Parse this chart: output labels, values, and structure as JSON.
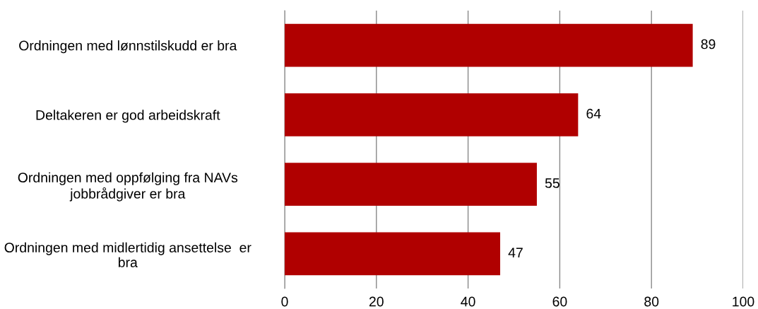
{
  "chart_data": {
    "type": "bar",
    "orientation": "horizontal",
    "categories": [
      "Ordningen med lønnstilskudd er bra",
      "Deltakeren er god arbeidskraft",
      "Ordningen med oppfølging fra NAVs\njobbrådgiver er bra",
      "Ordningen med midlertidig ansettelse  er\nbra"
    ],
    "values": [
      89,
      64,
      55,
      47
    ],
    "color": "#b00000",
    "xlim": [
      0,
      100
    ],
    "xticks": [
      0,
      20,
      40,
      60,
      80,
      100
    ],
    "grid": "x",
    "data_labels": true,
    "legend": false
  }
}
